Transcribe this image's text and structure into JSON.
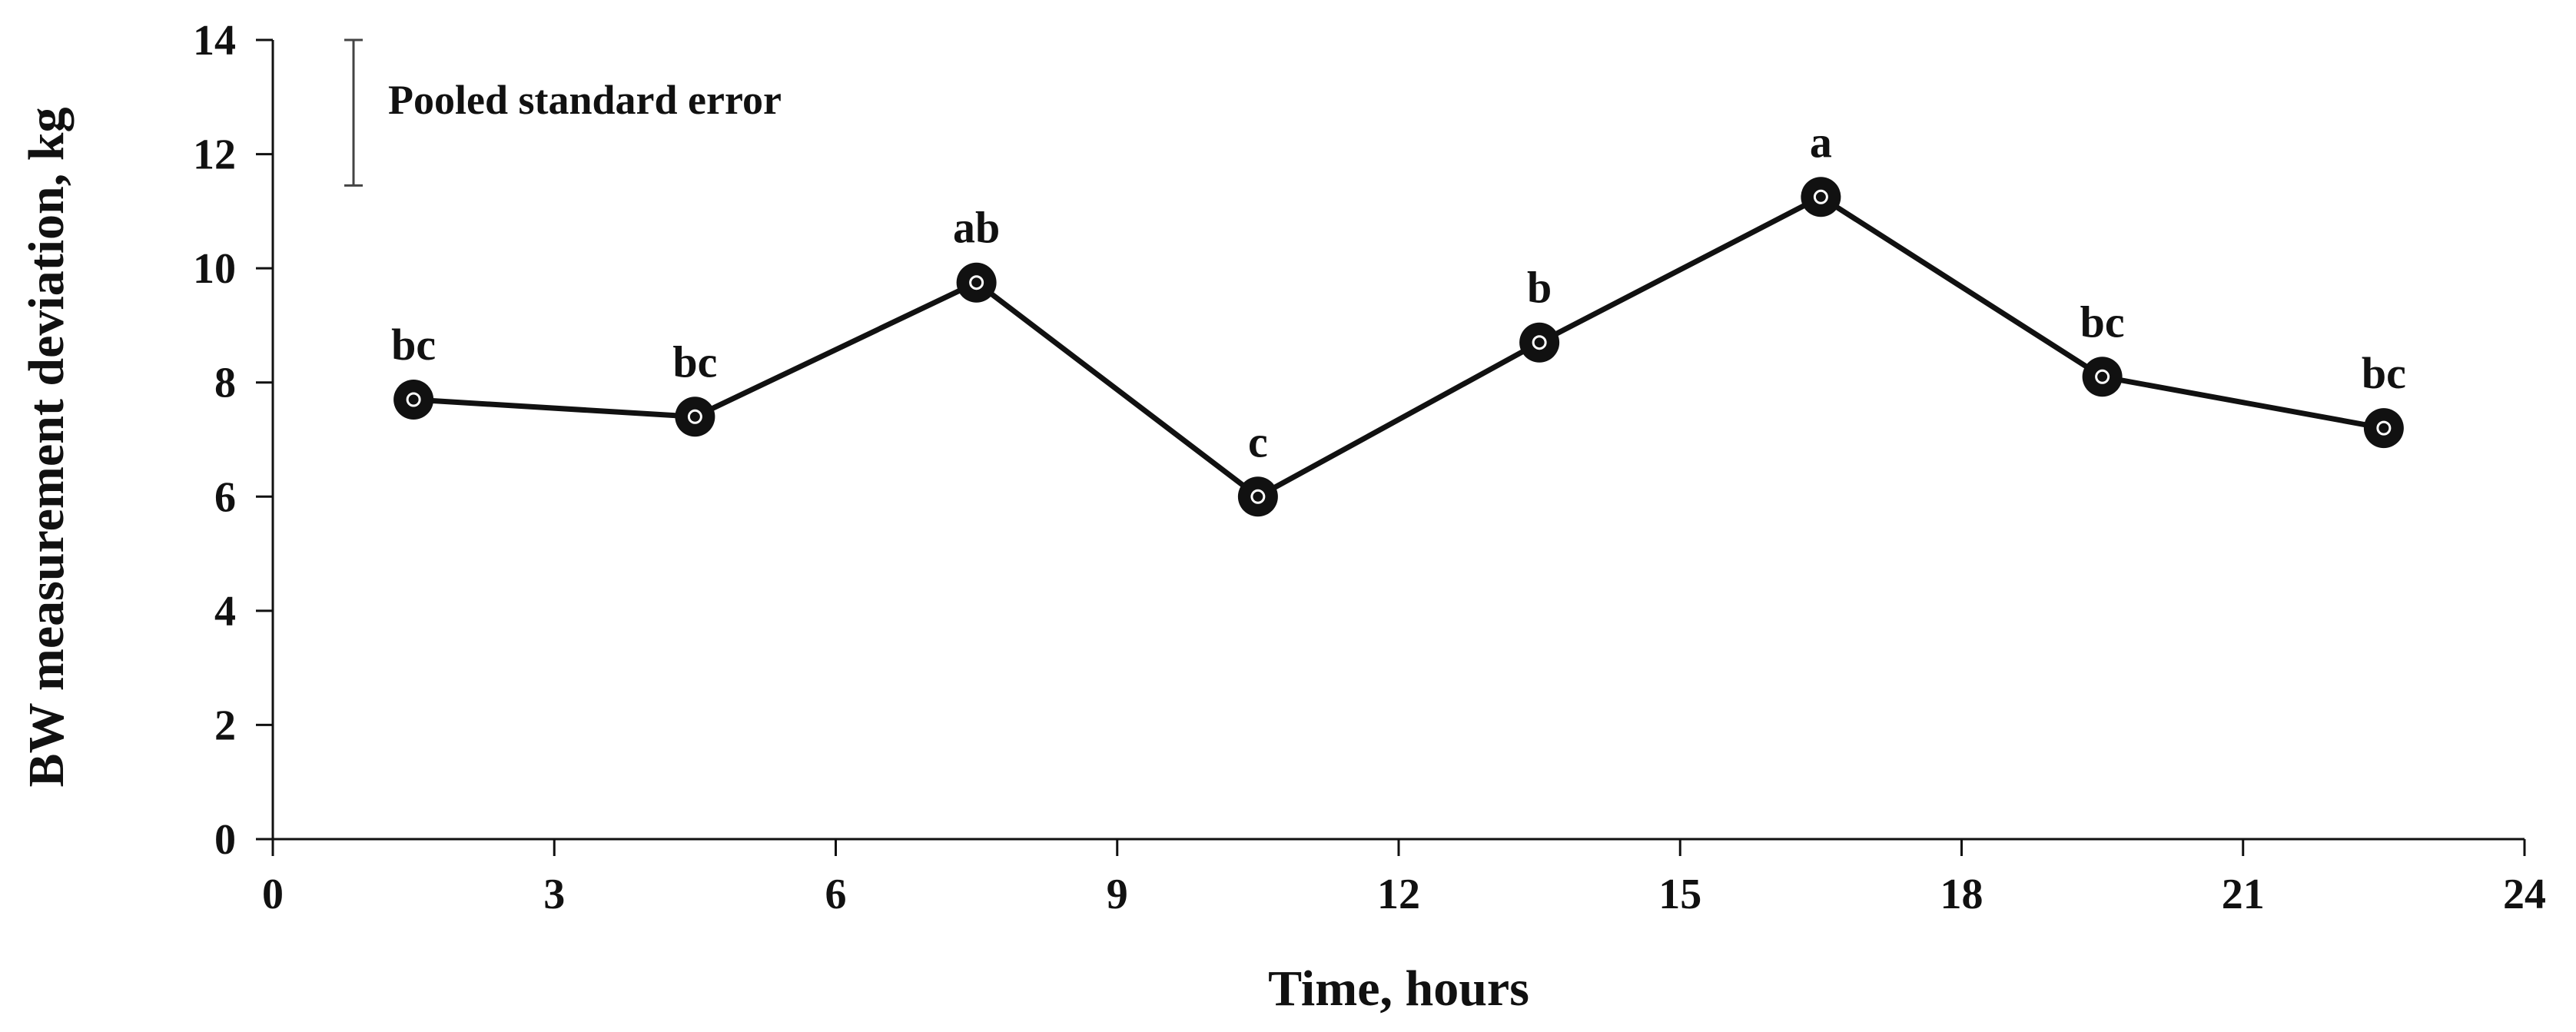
{
  "chart_data": {
    "type": "line",
    "xlabel": "Time, hours",
    "ylabel": "BW measurement deviation, kg",
    "xlim": [
      0,
      24
    ],
    "ylim": [
      0,
      14
    ],
    "x_ticks": [
      0,
      3,
      6,
      9,
      12,
      15,
      18,
      21,
      24
    ],
    "y_ticks": [
      0,
      2,
      4,
      6,
      8,
      10,
      12,
      14
    ],
    "grid": false,
    "series": [
      {
        "x": [
          1.5,
          4.5,
          7.5,
          10.5,
          13.5,
          16.5,
          19.5,
          22.5
        ],
        "y": [
          7.7,
          7.4,
          9.75,
          6.0,
          8.7,
          11.25,
          8.1,
          7.2
        ],
        "point_labels": [
          "bc",
          "bc",
          "ab",
          "c",
          "b",
          "a",
          "bc",
          "bc"
        ]
      }
    ],
    "annotations": {
      "error_bar_label": "Pooled standard error",
      "error_bar_range": [
        11.45,
        14.0
      ]
    },
    "colors": {
      "line": "#111111",
      "marker": "#111111"
    }
  }
}
